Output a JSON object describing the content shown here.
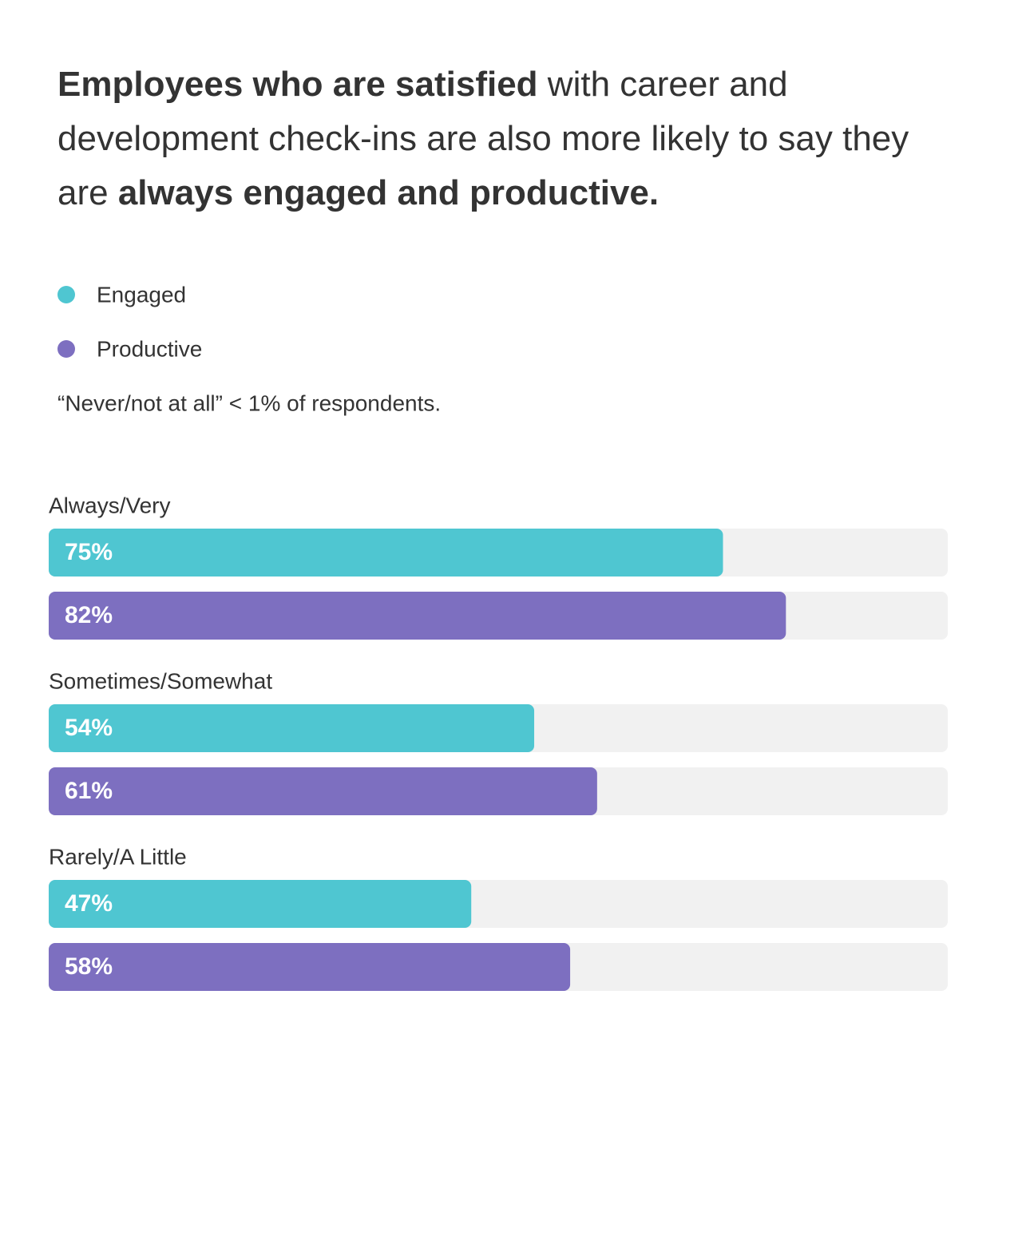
{
  "chart_data": {
    "type": "bar",
    "orientation": "horizontal",
    "title": [
      {
        "text": "Employees who are satisfied",
        "bold": true
      },
      {
        "text": " with career and development check-ins are also more likely to say they are ",
        "bold": false
      },
      {
        "text": "always engaged and productive.",
        "bold": true
      }
    ],
    "note": "“Never/not at all” < 1% of respondents.",
    "categories": [
      "Always/Very",
      "Sometimes/Somewhat",
      "Rarely/A Little"
    ],
    "series": [
      {
        "name": "Engaged",
        "color": "#4fc6d1",
        "values": [
          75,
          54,
          47
        ],
        "value_labels": [
          "75%",
          "54%",
          "47%"
        ]
      },
      {
        "name": "Productive",
        "color": "#7d6fc0",
        "values": [
          82,
          61,
          58
        ],
        "value_labels": [
          "82%",
          "61%",
          "58%"
        ]
      }
    ],
    "xlim": [
      0,
      100
    ]
  }
}
